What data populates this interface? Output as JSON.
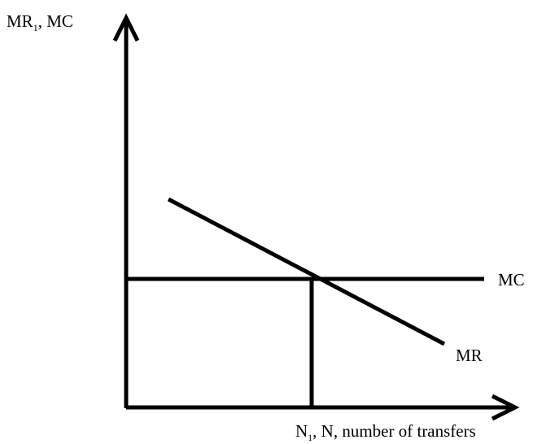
{
  "axes": {
    "y_label_main": "MR",
    "y_label_sub": "1",
    "y_label_rest": ", MC",
    "x_label_main": "N",
    "x_label_sub": "1",
    "x_label_rest": ", N, number of transfers"
  },
  "curves": {
    "mc_label": "MC",
    "mr_label": "MR"
  },
  "colors": {
    "line": "#000000",
    "background": "#ffffff"
  }
}
